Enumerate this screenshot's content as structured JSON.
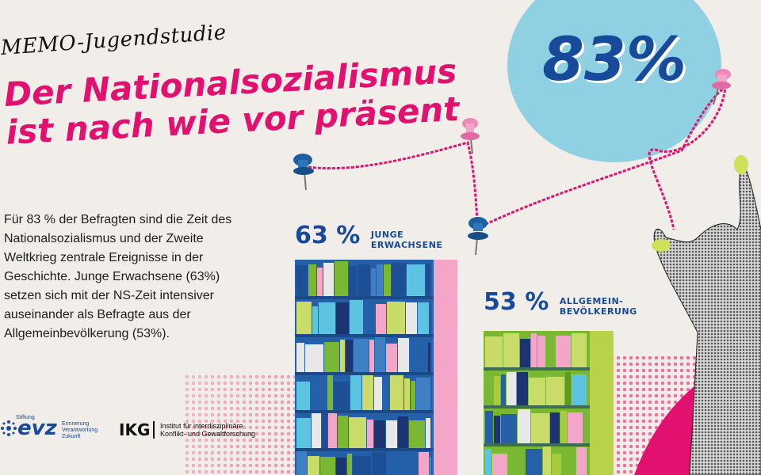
{
  "kicker": "MEMO-Jugendstudie",
  "headline": {
    "line1": "Der Nationalsozialismus",
    "line2": "ist nach wie vor präsent"
  },
  "body": "Für 83 % der Befragten sind die Zeit des Nationalsozialismus und der Zweite Weltkrieg zentrale Ereignisse in der Geschichte. Junge Erwachsene (63%) setzen sich mit der NS-Zeit intensiver auseinander als Befragte aus der Allgemeinbevölkerung (53%).",
  "highlight": {
    "value": "83%"
  },
  "stats": [
    {
      "value": "63 %",
      "label_line1": "JUNGE",
      "label_line2": "ERWACHSENE",
      "fraction": 0.63
    },
    {
      "value": "53 %",
      "label_line1": "ALLGEMEIN-",
      "label_line2": "BEVÖLKERUNG",
      "fraction": 0.53
    }
  ],
  "logos": {
    "evz": {
      "small": "Stiftung",
      "mark": "evz",
      "line1": "Erinnerung",
      "line2": "Verantwortung",
      "line3": "Zukunft"
    },
    "ikg": {
      "mark": "IKG",
      "line1": "Institut für interdisziplinäre",
      "line2": "Konflikt- und Gewaltforschung"
    }
  },
  "colors": {
    "background": "#f1ede8",
    "magenta": "#e2106e",
    "navy": "#184a9c",
    "light_blue": "#8fd0e2",
    "lime": "#9bc22a",
    "pink": "#f4a6c8"
  },
  "icons": [
    "pushpin-icon",
    "hand-icon"
  ]
}
